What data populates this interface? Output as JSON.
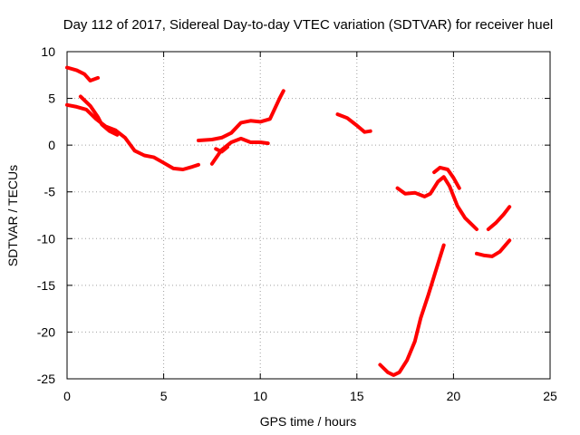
{
  "chart_data": {
    "type": "line",
    "title": "Day 112 of 2017, Sidereal Day-to-day VTEC variation (SDTVAR) for receiver huel",
    "xlabel": "GPS time / hours",
    "ylabel": "SDTVAR / TECUs",
    "xlim": [
      0,
      25
    ],
    "ylim": [
      -25,
      10
    ],
    "x_ticks": [
      0,
      5,
      10,
      15,
      20,
      25
    ],
    "y_ticks": [
      10,
      5,
      0,
      -5,
      -10,
      -15,
      -20,
      -25
    ],
    "grid": true,
    "legend": "none",
    "series_color": "#ff0000",
    "series": [
      {
        "name": "track-1",
        "points": [
          [
            0.0,
            8.3
          ],
          [
            0.5,
            8.0
          ],
          [
            0.9,
            7.6
          ],
          [
            1.2,
            6.9
          ],
          [
            1.6,
            7.2
          ]
        ]
      },
      {
        "name": "track-2",
        "points": [
          [
            0.0,
            4.3
          ],
          [
            0.5,
            4.1
          ],
          [
            1.0,
            3.8
          ],
          [
            1.5,
            2.8
          ],
          [
            2.0,
            2.0
          ],
          [
            2.5,
            1.6
          ],
          [
            3.0,
            0.8
          ],
          [
            3.5,
            -0.6
          ],
          [
            4.0,
            -1.1
          ],
          [
            4.5,
            -1.3
          ],
          [
            5.0,
            -1.9
          ],
          [
            5.5,
            -2.5
          ],
          [
            6.0,
            -2.6
          ],
          [
            6.5,
            -2.3
          ],
          [
            6.8,
            -2.1
          ]
        ]
      },
      {
        "name": "track-3",
        "points": [
          [
            0.7,
            5.2
          ],
          [
            1.2,
            4.2
          ],
          [
            1.6,
            3.0
          ],
          [
            1.8,
            2.2
          ],
          [
            2.2,
            1.5
          ],
          [
            2.6,
            1.1
          ]
        ]
      },
      {
        "name": "track-4",
        "points": [
          [
            6.8,
            0.5
          ],
          [
            7.5,
            0.6
          ],
          [
            8.0,
            0.8
          ],
          [
            8.5,
            1.3
          ],
          [
            9.0,
            2.4
          ],
          [
            9.5,
            2.6
          ],
          [
            10.0,
            2.5
          ],
          [
            10.5,
            2.8
          ],
          [
            11.0,
            5.0
          ],
          [
            11.2,
            5.8
          ]
        ]
      },
      {
        "name": "track-5",
        "points": [
          [
            7.5,
            -2.0
          ],
          [
            8.0,
            -0.5
          ],
          [
            8.5,
            0.3
          ],
          [
            9.0,
            0.7
          ],
          [
            9.5,
            0.3
          ],
          [
            10.0,
            0.3
          ],
          [
            10.4,
            0.2
          ]
        ]
      },
      {
        "name": "track-6",
        "points": [
          [
            7.7,
            -0.4
          ],
          [
            8.0,
            -0.7
          ],
          [
            8.3,
            -0.2
          ]
        ]
      },
      {
        "name": "track-7",
        "points": [
          [
            14.0,
            3.3
          ],
          [
            14.5,
            2.9
          ],
          [
            15.0,
            2.1
          ],
          [
            15.4,
            1.4
          ],
          [
            15.7,
            1.5
          ]
        ]
      },
      {
        "name": "track-8",
        "points": [
          [
            17.1,
            -4.6
          ],
          [
            17.5,
            -5.2
          ],
          [
            18.0,
            -5.1
          ],
          [
            18.5,
            -5.5
          ],
          [
            18.8,
            -5.2
          ],
          [
            19.2,
            -3.9
          ],
          [
            19.5,
            -3.4
          ],
          [
            19.8,
            -4.4
          ],
          [
            20.2,
            -6.5
          ],
          [
            20.6,
            -7.8
          ],
          [
            21.0,
            -8.6
          ],
          [
            21.2,
            -9.0
          ]
        ]
      },
      {
        "name": "track-9",
        "points": [
          [
            19.0,
            -2.9
          ],
          [
            19.3,
            -2.4
          ],
          [
            19.7,
            -2.6
          ],
          [
            20.0,
            -3.5
          ],
          [
            20.3,
            -4.6
          ]
        ]
      },
      {
        "name": "track-10",
        "points": [
          [
            16.2,
            -23.5
          ],
          [
            16.6,
            -24.3
          ],
          [
            16.9,
            -24.6
          ],
          [
            17.2,
            -24.3
          ],
          [
            17.6,
            -23.0
          ],
          [
            18.0,
            -21.0
          ],
          [
            18.3,
            -18.5
          ],
          [
            18.7,
            -16.0
          ],
          [
            19.0,
            -14.0
          ],
          [
            19.3,
            -12.0
          ],
          [
            19.5,
            -10.7
          ]
        ]
      },
      {
        "name": "track-11",
        "points": [
          [
            21.2,
            -11.6
          ],
          [
            21.6,
            -11.8
          ],
          [
            22.0,
            -11.9
          ],
          [
            22.4,
            -11.4
          ],
          [
            22.9,
            -10.2
          ]
        ]
      },
      {
        "name": "track-12",
        "points": [
          [
            21.8,
            -9.0
          ],
          [
            22.2,
            -8.3
          ],
          [
            22.6,
            -7.4
          ],
          [
            22.9,
            -6.6
          ]
        ]
      }
    ]
  }
}
